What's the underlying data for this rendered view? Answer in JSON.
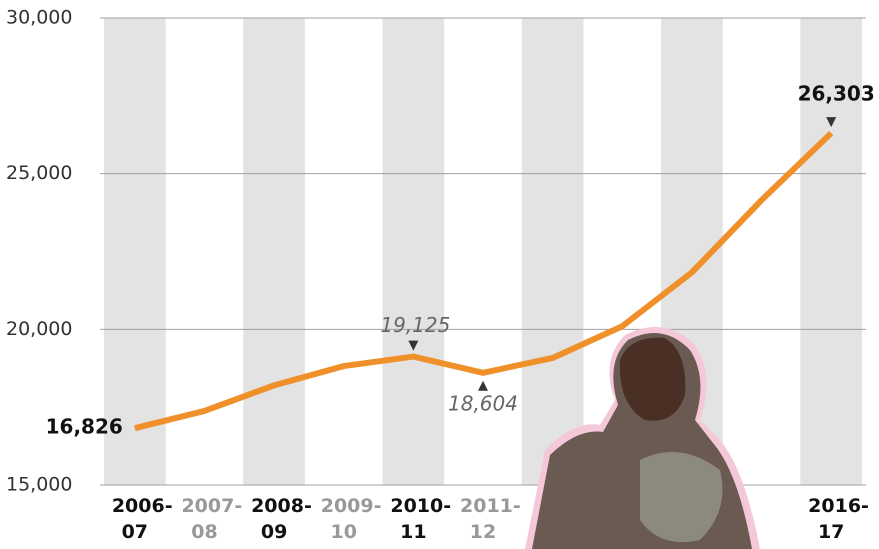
{
  "chart_data": {
    "type": "line",
    "categories": [
      "2006-07",
      "2007-08",
      "2008-09",
      "2009-10",
      "2010-11",
      "2011-12",
      null,
      null,
      null,
      null,
      "2016-17"
    ],
    "values": [
      16826,
      17380,
      18200,
      18820,
      19125,
      18604,
      19080,
      20100,
      21830,
      24150,
      26303
    ],
    "value_labels": [
      "16,826",
      null,
      null,
      null,
      "19,125",
      "18,604",
      null,
      null,
      null,
      null,
      "26,303"
    ],
    "color": "#f0902a",
    "ylim": [
      15000,
      30000
    ],
    "yticks": [
      {
        "value": 15000,
        "label": "15,000"
      },
      {
        "value": 20000,
        "label": "20,000"
      },
      {
        "value": 25000,
        "label": "25,000"
      },
      {
        "value": 30000,
        "label": "30,000"
      }
    ],
    "grid": true
  }
}
